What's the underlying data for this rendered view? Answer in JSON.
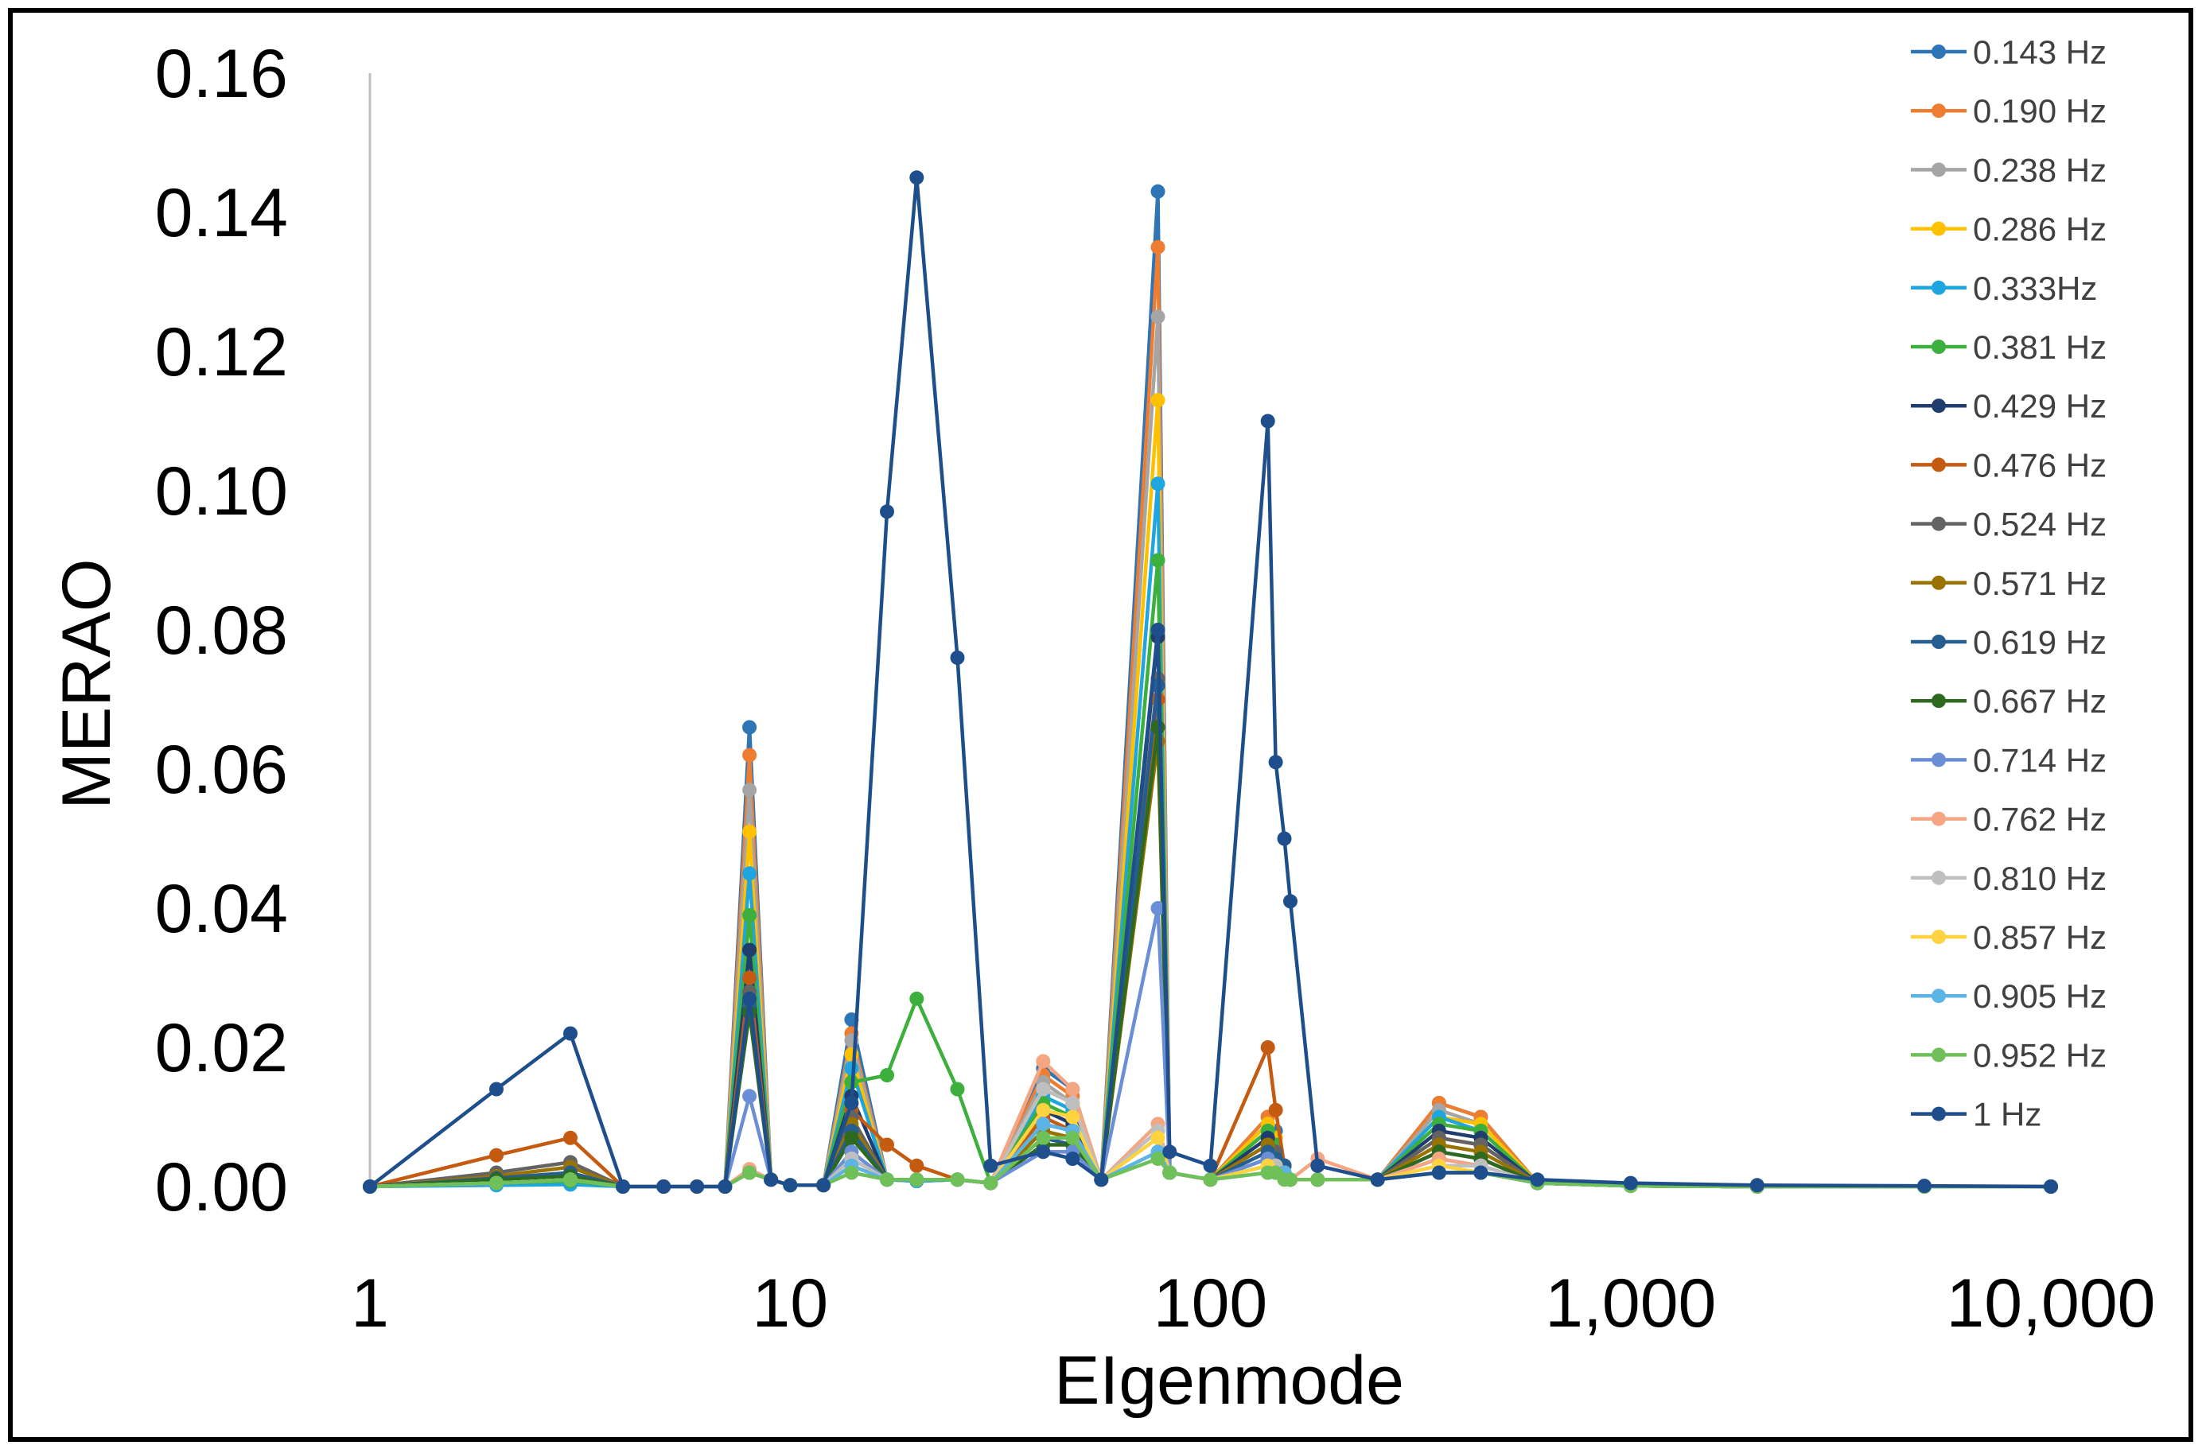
{
  "chart_data": {
    "type": "line",
    "title": "",
    "xlabel": "EIgenmode",
    "ylabel": "MERAO",
    "xscale": "log",
    "xlim": [
      1,
      10000
    ],
    "ylim": [
      0,
      0.16
    ],
    "x_ticks": [
      {
        "value": 1,
        "label": "1"
      },
      {
        "value": 10,
        "label": "10"
      },
      {
        "value": 100,
        "label": "100"
      },
      {
        "value": 1000,
        "label": "1,000"
      },
      {
        "value": 10000,
        "label": "10,000"
      }
    ],
    "y_ticks": [
      {
        "value": 0,
        "label": "0.00"
      },
      {
        "value": 0.02,
        "label": "0.02"
      },
      {
        "value": 0.04,
        "label": "0.04"
      },
      {
        "value": 0.06,
        "label": "0.06"
      },
      {
        "value": 0.08,
        "label": "0.08"
      },
      {
        "value": 0.1,
        "label": "0.10"
      },
      {
        "value": 0.12,
        "label": "0.12"
      },
      {
        "value": 0.14,
        "label": "0.14"
      },
      {
        "value": 0.16,
        "label": "0.16"
      }
    ],
    "grid": false,
    "legend_position": "right",
    "x": [
      1,
      2,
      3,
      4,
      5,
      6,
      7,
      8,
      9,
      10,
      12,
      14,
      17,
      20,
      25,
      30,
      40,
      47,
      55,
      75,
      80,
      100,
      137,
      143,
      150,
      155,
      180,
      250,
      350,
      440,
      600,
      1000,
      2000,
      5000,
      10000
    ],
    "series": [
      {
        "name": "0.143 Hz",
        "color": "#2E75B6",
        "values": [
          0,
          0.0005,
          0.0008,
          0,
          0,
          0,
          0,
          0.066,
          0.001,
          0.0002,
          0.0002,
          0.024,
          0.001,
          0.0008,
          0.001,
          0.0005,
          0.017,
          0.014,
          0.001,
          0.143,
          0.002,
          0.001,
          0.01,
          0.008,
          0.003,
          0.001,
          0.001,
          0.001,
          0.012,
          0.01,
          0.0005,
          0.0001,
          0,
          0,
          0
        ]
      },
      {
        "name": "0.190 Hz",
        "color": "#ED7D31",
        "values": [
          0,
          0.0005,
          0.0008,
          0,
          0,
          0,
          0,
          0.062,
          0.001,
          0.0002,
          0.0002,
          0.022,
          0.001,
          0.0008,
          0.001,
          0.0005,
          0.016,
          0.013,
          0.001,
          0.135,
          0.002,
          0.001,
          0.01,
          0.007,
          0.003,
          0.001,
          0.001,
          0.001,
          0.012,
          0.01,
          0.0005,
          0.0001,
          0,
          0,
          0
        ]
      },
      {
        "name": "0.238 Hz",
        "color": "#A5A5A5",
        "values": [
          0,
          0.0005,
          0.0008,
          0,
          0,
          0,
          0,
          0.057,
          0.001,
          0.0002,
          0.0002,
          0.021,
          0.001,
          0.0008,
          0.001,
          0.0005,
          0.015,
          0.012,
          0.001,
          0.125,
          0.002,
          0.001,
          0.009,
          0.007,
          0.003,
          0.001,
          0.001,
          0.001,
          0.011,
          0.009,
          0.0005,
          0.0001,
          0,
          0,
          0
        ]
      },
      {
        "name": "0.286 Hz",
        "color": "#FFC000",
        "values": [
          0,
          0.0005,
          0.0008,
          0,
          0,
          0,
          0,
          0.051,
          0.001,
          0.0002,
          0.0002,
          0.019,
          0.001,
          0.0008,
          0.001,
          0.0005,
          0.014,
          0.012,
          0.001,
          0.113,
          0.002,
          0.001,
          0.009,
          0.007,
          0.003,
          0.001,
          0.001,
          0.001,
          0.01,
          0.009,
          0.0005,
          0.0001,
          0,
          0,
          0
        ]
      },
      {
        "name": "0.333Hz",
        "color": "#1FA5E0",
        "values": [
          0,
          0.0002,
          0.0003,
          0,
          0,
          0,
          0,
          0.045,
          0.001,
          0.0002,
          0.0002,
          0.017,
          0.001,
          0.0008,
          0.001,
          0.0005,
          0.013,
          0.011,
          0.001,
          0.101,
          0.002,
          0.001,
          0.008,
          0.006,
          0.003,
          0.001,
          0.001,
          0.001,
          0.01,
          0.008,
          0.0005,
          0.0001,
          0,
          0,
          0
        ]
      },
      {
        "name": "0.381 Hz",
        "color": "#3DAF3D",
        "values": [
          0,
          0.0005,
          0.0008,
          0,
          0,
          0,
          0,
          0.039,
          0.001,
          0.0002,
          0.0002,
          0.015,
          0.016,
          0.027,
          0.014,
          0.0005,
          0.012,
          0.01,
          0.001,
          0.09,
          0.002,
          0.001,
          0.008,
          0.006,
          0.003,
          0.001,
          0.001,
          0.001,
          0.009,
          0.008,
          0.0005,
          0.0001,
          0,
          0,
          0
        ]
      },
      {
        "name": "0.429 Hz",
        "color": "#1F3E6E",
        "values": [
          0,
          0.0005,
          0.001,
          0,
          0,
          0,
          0,
          0.034,
          0.001,
          0.0002,
          0.0002,
          0.013,
          0.001,
          0.001,
          0.001,
          0.0005,
          0.011,
          0.009,
          0.001,
          0.079,
          0.002,
          0.001,
          0.007,
          0.005,
          0.003,
          0.001,
          0.001,
          0.001,
          0.008,
          0.007,
          0.0005,
          0.0001,
          0,
          0,
          0
        ]
      },
      {
        "name": "0.476 Hz",
        "color": "#C55A11",
        "values": [
          0,
          0.0045,
          0.007,
          0,
          0,
          0,
          0,
          0.03,
          0.001,
          0.0002,
          0.0002,
          0.011,
          0.006,
          0.003,
          0.001,
          0.0005,
          0.01,
          0.008,
          0.001,
          0.07,
          0.002,
          0.001,
          0.02,
          0.011,
          0.003,
          0.001,
          0.001,
          0.001,
          0.007,
          0.006,
          0.0005,
          0.0001,
          0,
          0,
          0
        ]
      },
      {
        "name": "0.524 Hz",
        "color": "#636363",
        "values": [
          0,
          0.002,
          0.0035,
          0,
          0,
          0,
          0,
          0.028,
          0.001,
          0.0002,
          0.0002,
          0.01,
          0.001,
          0.001,
          0.001,
          0.0005,
          0.009,
          0.008,
          0.001,
          0.073,
          0.002,
          0.001,
          0.006,
          0.005,
          0.003,
          0.001,
          0.001,
          0.001,
          0.007,
          0.006,
          0.0005,
          0.0001,
          0,
          0,
          0
        ]
      },
      {
        "name": "0.571 Hz",
        "color": "#997300",
        "values": [
          0,
          0.0015,
          0.0028,
          0,
          0,
          0,
          0,
          0.027,
          0.001,
          0.0002,
          0.0002,
          0.009,
          0.001,
          0.001,
          0.001,
          0.0005,
          0.008,
          0.007,
          0.001,
          0.064,
          0.002,
          0.001,
          0.006,
          0.004,
          0.003,
          0.001,
          0.001,
          0.001,
          0.006,
          0.005,
          0.0005,
          0.0001,
          0,
          0,
          0
        ]
      },
      {
        "name": "0.619 Hz",
        "color": "#255E91",
        "values": [
          0,
          0.0012,
          0.002,
          0,
          0,
          0,
          0,
          0.026,
          0.001,
          0.0002,
          0.0002,
          0.008,
          0.001,
          0.001,
          0.001,
          0.0005,
          0.007,
          0.006,
          0.001,
          0.072,
          0.002,
          0.001,
          0.005,
          0.004,
          0.003,
          0.001,
          0.001,
          0.001,
          0.005,
          0.004,
          0.0005,
          0.0001,
          0,
          0,
          0
        ]
      },
      {
        "name": "0.667 Hz",
        "color": "#2D6A1F",
        "values": [
          0,
          0.001,
          0.0015,
          0,
          0,
          0,
          0,
          0.025,
          0.001,
          0.0002,
          0.0002,
          0.007,
          0.001,
          0.001,
          0.001,
          0.0005,
          0.006,
          0.006,
          0.001,
          0.066,
          0.002,
          0.001,
          0.004,
          0.003,
          0.002,
          0.001,
          0.001,
          0.001,
          0.005,
          0.004,
          0.0005,
          0.0001,
          0,
          0,
          0
        ]
      },
      {
        "name": "0.714 Hz",
        "color": "#6B8FD6",
        "values": [
          0,
          0.0005,
          0.001,
          0,
          0,
          0,
          0,
          0.013,
          0.001,
          0.0002,
          0.0002,
          0.005,
          0.001,
          0.001,
          0.001,
          0.0005,
          0.005,
          0.005,
          0.001,
          0.04,
          0.002,
          0.001,
          0.004,
          0.003,
          0.002,
          0.001,
          0.001,
          0.001,
          0.004,
          0.003,
          0.0005,
          0.0001,
          0,
          0,
          0
        ]
      },
      {
        "name": "0.762 Hz",
        "color": "#F4A582",
        "values": [
          0,
          0.0005,
          0.001,
          0,
          0,
          0,
          0,
          0.0025,
          0.001,
          0.0002,
          0.0002,
          0.004,
          0.001,
          0.001,
          0.001,
          0.0005,
          0.018,
          0.014,
          0.001,
          0.009,
          0.002,
          0.001,
          0.003,
          0.003,
          0.002,
          0.001,
          0.004,
          0.001,
          0.004,
          0.003,
          0.0005,
          0.0001,
          0,
          0,
          0
        ]
      },
      {
        "name": "0.810 Hz",
        "color": "#BFBFBF",
        "values": [
          0,
          0.0005,
          0.001,
          0,
          0,
          0,
          0,
          0.002,
          0.001,
          0.0002,
          0.0002,
          0.004,
          0.001,
          0.001,
          0.001,
          0.0005,
          0.014,
          0.012,
          0.001,
          0.008,
          0.002,
          0.001,
          0.003,
          0.003,
          0.002,
          0.001,
          0.001,
          0.001,
          0.003,
          0.003,
          0.0005,
          0.0001,
          0,
          0,
          0
        ]
      },
      {
        "name": "0.857 Hz",
        "color": "#FFD23F",
        "values": [
          0,
          0.0005,
          0.001,
          0,
          0,
          0,
          0,
          0.002,
          0.001,
          0.0002,
          0.0002,
          0.003,
          0.001,
          0.001,
          0.001,
          0.0005,
          0.011,
          0.01,
          0.001,
          0.007,
          0.002,
          0.001,
          0.003,
          0.002,
          0.002,
          0.001,
          0.001,
          0.001,
          0.003,
          0.002,
          0.0005,
          0.0001,
          0,
          0,
          0
        ]
      },
      {
        "name": "0.905 Hz",
        "color": "#5BB4E5",
        "values": [
          0,
          0.0005,
          0.001,
          0,
          0,
          0,
          0,
          0.002,
          0.001,
          0.0002,
          0.0002,
          0.003,
          0.001,
          0.001,
          0.001,
          0.0005,
          0.009,
          0.008,
          0.001,
          0.005,
          0.002,
          0.001,
          0.002,
          0.002,
          0.002,
          0.001,
          0.001,
          0.001,
          0.002,
          0.002,
          0.0005,
          0.0001,
          0,
          0,
          0
        ]
      },
      {
        "name": "0.952 Hz",
        "color": "#70C05A",
        "values": [
          0,
          0.0005,
          0.001,
          0,
          0,
          0,
          0,
          0.002,
          0.001,
          0.0002,
          0.0002,
          0.002,
          0.001,
          0.001,
          0.001,
          0.0005,
          0.007,
          0.007,
          0.001,
          0.004,
          0.002,
          0.001,
          0.002,
          0.002,
          0.001,
          0.001,
          0.001,
          0.001,
          0.002,
          0.002,
          0.0005,
          0.0001,
          0,
          0,
          0
        ]
      },
      {
        "name": "1 Hz",
        "color": "#1E4E8C",
        "values": [
          0,
          0.014,
          0.022,
          0,
          0,
          0,
          0,
          0.027,
          0.001,
          0.0002,
          0.0002,
          0.012,
          0.097,
          0.145,
          0.076,
          0.003,
          0.005,
          0.004,
          0.001,
          0.08,
          0.005,
          0.003,
          0.11,
          0.061,
          0.05,
          0.041,
          0.003,
          0.001,
          0.002,
          0.002,
          0.001,
          0.0005,
          0.0002,
          0.0001,
          0
        ]
      }
    ]
  }
}
